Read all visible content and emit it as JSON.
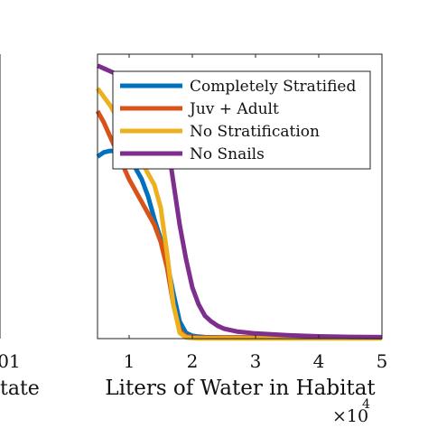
{
  "left_panel_fragment": {
    "tick_label": "01",
    "axis_label_fragment": "tate"
  },
  "chart_data": {
    "type": "line",
    "title": "",
    "xlabel": "Liters of Water in Habitat",
    "ylabel": "",
    "x_multiplier": "×10",
    "x_multiplier_exponent": "4",
    "xlim": [
      5000,
      50000
    ],
    "ylim": [
      0,
      1
    ],
    "xticks": [
      10000,
      20000,
      30000,
      40000,
      50000
    ],
    "xtick_labels": [
      "1",
      "2",
      "3",
      "4",
      "5"
    ],
    "grid": false,
    "legend_position": "top-right",
    "series": [
      {
        "name": "Completely Stratified",
        "color": "#0072BD",
        "x": [
          5000,
          6000,
          7000,
          8000,
          9000,
          10000,
          11000,
          12000,
          13000,
          14000,
          15000,
          16000,
          17000,
          18000,
          19000,
          20000,
          21000,
          22000,
          25000,
          30000,
          40000,
          50000
        ],
        "y": [
          0.64,
          0.655,
          0.66,
          0.66,
          0.65,
          0.63,
          0.6,
          0.56,
          0.5,
          0.42,
          0.35,
          0.27,
          0.16,
          0.06,
          0.02,
          0.01,
          0.007,
          0.005,
          0.004,
          0.004,
          0.004,
          0.004
        ]
      },
      {
        "name": "Juv + Adult",
        "color": "#D95319",
        "x": [
          5000,
          6000,
          7000,
          8000,
          9000,
          10000,
          11000,
          12000,
          13000,
          14000,
          15000,
          16000,
          17000,
          18000,
          19000,
          20000,
          21000,
          22000,
          25000,
          30000,
          40000,
          50000
        ],
        "y": [
          0.8,
          0.76,
          0.71,
          0.66,
          0.61,
          0.56,
          0.52,
          0.48,
          0.44,
          0.4,
          0.34,
          0.25,
          0.12,
          0.03,
          0.008,
          0.005,
          0.004,
          0.004,
          0.004,
          0.004,
          0.004,
          0.004
        ]
      },
      {
        "name": "No Stratification",
        "color": "#EDB120",
        "x": [
          5000,
          6000,
          7000,
          8000,
          9000,
          10000,
          11000,
          12000,
          13000,
          14000,
          15000,
          16000,
          17000,
          18000,
          19000,
          20000,
          21000,
          22000,
          25000,
          30000,
          40000,
          50000
        ],
        "y": [
          0.88,
          0.85,
          0.82,
          0.78,
          0.74,
          0.7,
          0.66,
          0.62,
          0.58,
          0.54,
          0.46,
          0.3,
          0.12,
          0.02,
          0.004,
          0.002,
          0.001,
          0.001,
          0.001,
          0.001,
          0.001,
          0.001
        ]
      },
      {
        "name": "No Snails",
        "color": "#7E2F8E",
        "x": [
          5000,
          6000,
          7000,
          8000,
          9000,
          10000,
          11000,
          12000,
          13000,
          14000,
          15000,
          16000,
          17000,
          18000,
          19000,
          20000,
          21000,
          22000,
          23000,
          24000,
          25000,
          27000,
          30000,
          35000,
          40000,
          45000,
          50000
        ],
        "y": [
          0.96,
          0.95,
          0.94,
          0.93,
          0.92,
          0.9,
          0.88,
          0.86,
          0.84,
          0.82,
          0.78,
          0.7,
          0.55,
          0.4,
          0.28,
          0.18,
          0.12,
          0.08,
          0.06,
          0.045,
          0.035,
          0.025,
          0.018,
          0.012,
          0.008,
          0.006,
          0.005
        ]
      }
    ]
  }
}
